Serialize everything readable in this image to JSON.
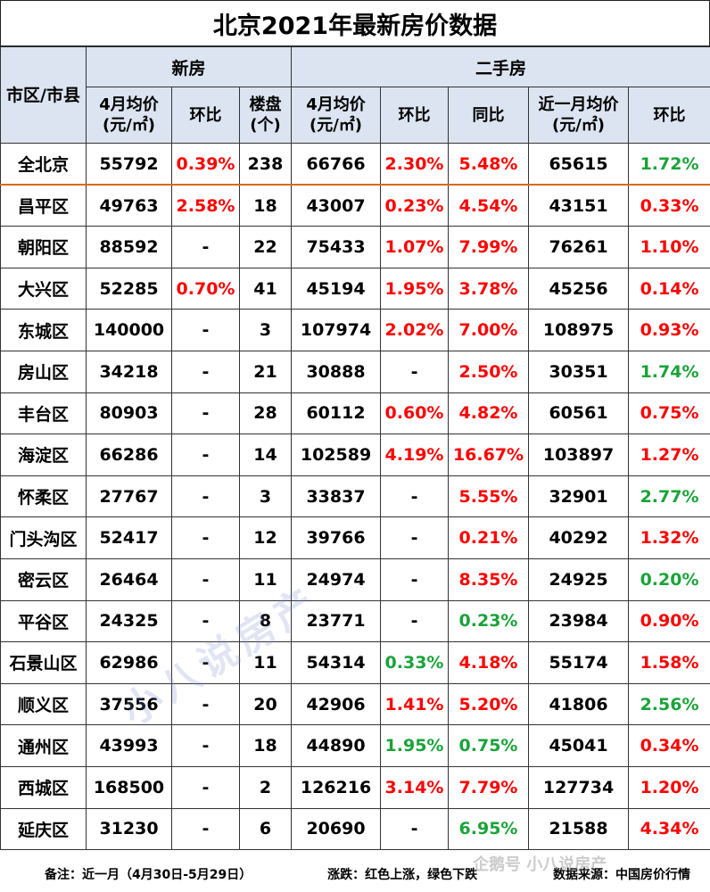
{
  "title": "北京2021年最新房价数据",
  "headers": {
    "region": "市区/市县",
    "new_group": "新房",
    "second_group": "二手房",
    "new_avg": "4月均价(元/㎡)",
    "new_mom": "环比",
    "projects": "楼盘(个)",
    "sec_avg": "4月均价(元/㎡)",
    "sec_mom": "环比",
    "sec_yoy": "同比",
    "recent_avg": "近一月均价(元/㎡)",
    "recent_mom": "环比"
  },
  "rows": [
    {
      "name": "全北京",
      "new_avg": "55792",
      "new_mom": "0.39%",
      "new_mom_c": "up",
      "projects": "238",
      "sec_avg": "66766",
      "sec_mom": "2.30%",
      "sec_mom_c": "up",
      "sec_yoy": "5.48%",
      "sec_yoy_c": "up",
      "recent_avg": "65615",
      "recent_mom": "1.72%",
      "recent_mom_c": "down"
    },
    {
      "name": "昌平区",
      "new_avg": "49763",
      "new_mom": "2.58%",
      "new_mom_c": "up",
      "projects": "18",
      "sec_avg": "43007",
      "sec_mom": "0.23%",
      "sec_mom_c": "up",
      "sec_yoy": "4.54%",
      "sec_yoy_c": "up",
      "recent_avg": "43151",
      "recent_mom": "0.33%",
      "recent_mom_c": "up"
    },
    {
      "name": "朝阳区",
      "new_avg": "88592",
      "new_mom": "-",
      "new_mom_c": "neutral",
      "projects": "22",
      "sec_avg": "75433",
      "sec_mom": "1.07%",
      "sec_mom_c": "up",
      "sec_yoy": "7.99%",
      "sec_yoy_c": "up",
      "recent_avg": "76261",
      "recent_mom": "1.10%",
      "recent_mom_c": "up"
    },
    {
      "name": "大兴区",
      "new_avg": "52285",
      "new_mom": "0.70%",
      "new_mom_c": "up",
      "projects": "41",
      "sec_avg": "45194",
      "sec_mom": "1.95%",
      "sec_mom_c": "up",
      "sec_yoy": "3.78%",
      "sec_yoy_c": "up",
      "recent_avg": "45256",
      "recent_mom": "0.14%",
      "recent_mom_c": "up"
    },
    {
      "name": "东城区",
      "new_avg": "140000",
      "new_mom": "-",
      "new_mom_c": "neutral",
      "projects": "3",
      "sec_avg": "107974",
      "sec_mom": "2.02%",
      "sec_mom_c": "up",
      "sec_yoy": "7.00%",
      "sec_yoy_c": "up",
      "recent_avg": "108975",
      "recent_mom": "0.93%",
      "recent_mom_c": "up"
    },
    {
      "name": "房山区",
      "new_avg": "34218",
      "new_mom": "-",
      "new_mom_c": "neutral",
      "projects": "21",
      "sec_avg": "30888",
      "sec_mom": "-",
      "sec_mom_c": "neutral",
      "sec_yoy": "2.50%",
      "sec_yoy_c": "up",
      "recent_avg": "30351",
      "recent_mom": "1.74%",
      "recent_mom_c": "down"
    },
    {
      "name": "丰台区",
      "new_avg": "80903",
      "new_mom": "-",
      "new_mom_c": "neutral",
      "projects": "28",
      "sec_avg": "60112",
      "sec_mom": "0.60%",
      "sec_mom_c": "up",
      "sec_yoy": "4.82%",
      "sec_yoy_c": "up",
      "recent_avg": "60561",
      "recent_mom": "0.75%",
      "recent_mom_c": "up"
    },
    {
      "name": "海淀区",
      "new_avg": "66286",
      "new_mom": "-",
      "new_mom_c": "neutral",
      "projects": "14",
      "sec_avg": "102589",
      "sec_mom": "4.19%",
      "sec_mom_c": "up",
      "sec_yoy": "16.67%",
      "sec_yoy_c": "up",
      "recent_avg": "103897",
      "recent_mom": "1.27%",
      "recent_mom_c": "up"
    },
    {
      "name": "怀柔区",
      "new_avg": "27767",
      "new_mom": "-",
      "new_mom_c": "neutral",
      "projects": "3",
      "sec_avg": "33837",
      "sec_mom": "-",
      "sec_mom_c": "neutral",
      "sec_yoy": "5.55%",
      "sec_yoy_c": "up",
      "recent_avg": "32901",
      "recent_mom": "2.77%",
      "recent_mom_c": "down"
    },
    {
      "name": "门头沟区",
      "new_avg": "52417",
      "new_mom": "-",
      "new_mom_c": "neutral",
      "projects": "12",
      "sec_avg": "39766",
      "sec_mom": "-",
      "sec_mom_c": "neutral",
      "sec_yoy": "0.21%",
      "sec_yoy_c": "up",
      "recent_avg": "40292",
      "recent_mom": "1.32%",
      "recent_mom_c": "up"
    },
    {
      "name": "密云区",
      "new_avg": "26464",
      "new_mom": "-",
      "new_mom_c": "neutral",
      "projects": "11",
      "sec_avg": "24974",
      "sec_mom": "-",
      "sec_mom_c": "neutral",
      "sec_yoy": "8.35%",
      "sec_yoy_c": "up",
      "recent_avg": "24925",
      "recent_mom": "0.20%",
      "recent_mom_c": "down"
    },
    {
      "name": "平谷区",
      "new_avg": "24325",
      "new_mom": "-",
      "new_mom_c": "neutral",
      "projects": "8",
      "sec_avg": "23771",
      "sec_mom": "-",
      "sec_mom_c": "neutral",
      "sec_yoy": "0.23%",
      "sec_yoy_c": "down",
      "recent_avg": "23984",
      "recent_mom": "0.90%",
      "recent_mom_c": "up"
    },
    {
      "name": "石景山区",
      "new_avg": "62986",
      "new_mom": "-",
      "new_mom_c": "neutral",
      "projects": "11",
      "sec_avg": "54314",
      "sec_mom": "0.33%",
      "sec_mom_c": "down",
      "sec_yoy": "4.18%",
      "sec_yoy_c": "up",
      "recent_avg": "55174",
      "recent_mom": "1.58%",
      "recent_mom_c": "up"
    },
    {
      "name": "顺义区",
      "new_avg": "37556",
      "new_mom": "-",
      "new_mom_c": "neutral",
      "projects": "20",
      "sec_avg": "42906",
      "sec_mom": "1.41%",
      "sec_mom_c": "up",
      "sec_yoy": "5.20%",
      "sec_yoy_c": "up",
      "recent_avg": "41806",
      "recent_mom": "2.56%",
      "recent_mom_c": "down"
    },
    {
      "name": "通州区",
      "new_avg": "43993",
      "new_mom": "-",
      "new_mom_c": "neutral",
      "projects": "18",
      "sec_avg": "44890",
      "sec_mom": "1.95%",
      "sec_mom_c": "down",
      "sec_yoy": "0.75%",
      "sec_yoy_c": "down",
      "recent_avg": "45041",
      "recent_mom": "0.34%",
      "recent_mom_c": "up"
    },
    {
      "name": "西城区",
      "new_avg": "168500",
      "new_mom": "-",
      "new_mom_c": "neutral",
      "projects": "2",
      "sec_avg": "126216",
      "sec_mom": "3.14%",
      "sec_mom_c": "up",
      "sec_yoy": "7.79%",
      "sec_yoy_c": "up",
      "recent_avg": "127734",
      "recent_mom": "1.20%",
      "recent_mom_c": "up"
    },
    {
      "name": "延庆区",
      "new_avg": "31230",
      "new_mom": "-",
      "new_mom_c": "neutral",
      "projects": "6",
      "sec_avg": "20690",
      "sec_mom": "-",
      "sec_mom_c": "neutral",
      "sec_yoy": "6.95%",
      "sec_yoy_c": "down",
      "recent_avg": "21588",
      "recent_mom": "4.34%",
      "recent_mom_c": "up"
    }
  ],
  "colors": {
    "up": "#ff0000",
    "down": "#1aa33a",
    "header_bg": "#dbe4f0"
  },
  "footer": {
    "note": "备注：近一月（4月30日-5月29日）",
    "legend": "涨跌：红色上涨，绿色下跌",
    "source": "数据来源：中国房价行情"
  },
  "watermark": "小八说房产",
  "watermark2": "企鹅号 小八说房产"
}
